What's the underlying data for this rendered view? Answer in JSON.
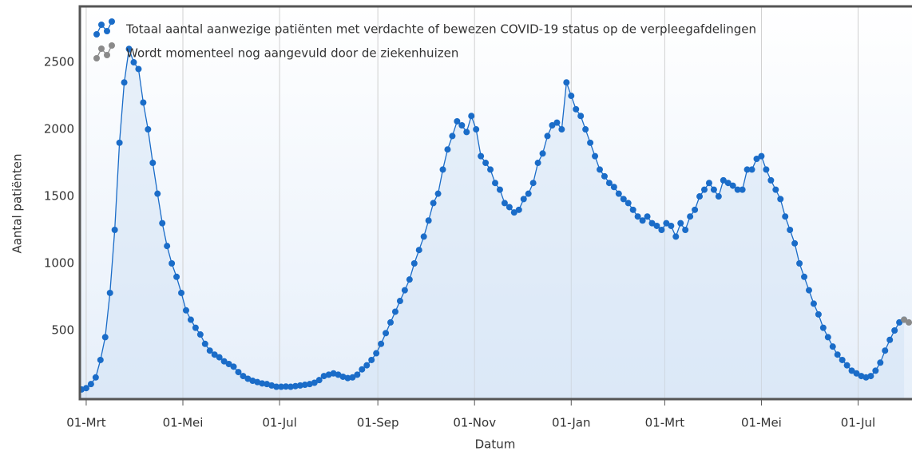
{
  "chart_data": {
    "type": "line",
    "x_label": "Datum",
    "y_label": "Aantal patiënten",
    "xlim": [
      -4,
      521
    ],
    "ylim": [
      -12,
      2917
    ],
    "xticks": [
      {
        "value": 0,
        "label": "01-Mrt"
      },
      {
        "value": 61,
        "label": "01-Mei"
      },
      {
        "value": 122,
        "label": "01-Jul"
      },
      {
        "value": 184,
        "label": "01-Sep"
      },
      {
        "value": 245,
        "label": "01-Nov"
      },
      {
        "value": 306,
        "label": "01-Jan"
      },
      {
        "value": 365,
        "label": "01-Mrt"
      },
      {
        "value": 426,
        "label": "01-Mei"
      },
      {
        "value": 487,
        "label": "01-Jul"
      }
    ],
    "yticks": [
      500,
      1000,
      1500,
      2000,
      2500
    ],
    "grid": true,
    "legend": "top-left",
    "series": [
      {
        "name": "Totaal aantal aanwezige patiënten met verdachte of bewezen COVID-19 status op de verpleegafdelingen",
        "color": "#1a6cc8",
        "x": [
          -3,
          0,
          3,
          6,
          9,
          12,
          15,
          18,
          21,
          24,
          27,
          30,
          33,
          36,
          39,
          42,
          45,
          48,
          51,
          54,
          57,
          60,
          63,
          66,
          69,
          72,
          75,
          78,
          81,
          84,
          87,
          90,
          93,
          96,
          99,
          102,
          105,
          108,
          111,
          114,
          117,
          120,
          123,
          126,
          129,
          132,
          135,
          138,
          141,
          144,
          147,
          150,
          153,
          156,
          159,
          162,
          165,
          168,
          171,
          174,
          177,
          180,
          183,
          186,
          189,
          192,
          195,
          198,
          201,
          204,
          207,
          210,
          213,
          216,
          219,
          222,
          225,
          228,
          231,
          234,
          237,
          240,
          243,
          246,
          249,
          252,
          255,
          258,
          261,
          264,
          267,
          270,
          273,
          276,
          279,
          282,
          285,
          288,
          291,
          294,
          297,
          300,
          303,
          306,
          309,
          312,
          315,
          318,
          321,
          324,
          327,
          330,
          333,
          336,
          339,
          342,
          345,
          348,
          351,
          354,
          357,
          360,
          363,
          366,
          369,
          372,
          375,
          378,
          381,
          384,
          387,
          390,
          393,
          396,
          399,
          402,
          405,
          408,
          411,
          414,
          417,
          420,
          423,
          426,
          429,
          432,
          435,
          438,
          441,
          444,
          447,
          450,
          453,
          456,
          459,
          462,
          465,
          468,
          471,
          474,
          477,
          480,
          483,
          486,
          489,
          492,
          495,
          498,
          501,
          504,
          507,
          510,
          513,
          516
        ],
        "values": [
          60,
          70,
          100,
          150,
          280,
          450,
          780,
          1250,
          1900,
          2350,
          2600,
          2500,
          2450,
          2200,
          2000,
          1750,
          1520,
          1300,
          1130,
          1000,
          900,
          780,
          650,
          580,
          520,
          470,
          400,
          350,
          320,
          300,
          270,
          250,
          230,
          190,
          160,
          140,
          125,
          115,
          105,
          100,
          90,
          80,
          80,
          82,
          80,
          85,
          90,
          95,
          100,
          110,
          130,
          160,
          170,
          180,
          170,
          155,
          145,
          150,
          170,
          210,
          240,
          280,
          330,
          400,
          480,
          560,
          640,
          720,
          800,
          880,
          1000,
          1100,
          1200,
          1320,
          1450,
          1520,
          1700,
          1850,
          1950,
          2060,
          2030,
          1980,
          2100,
          2000,
          1800,
          1750,
          1700,
          1600,
          1550,
          1450,
          1420,
          1380,
          1400,
          1480,
          1520,
          1600,
          1750,
          1820,
          1950,
          2030,
          2050,
          2000,
          2350,
          2250,
          2150,
          2100,
          2000,
          1900,
          1800,
          1700,
          1650,
          1600,
          1570,
          1520,
          1480,
          1450,
          1400,
          1350,
          1320,
          1350,
          1300,
          1280,
          1250,
          1300,
          1280,
          1200,
          1300,
          1250,
          1350,
          1400,
          1500,
          1550,
          1600,
          1550,
          1500,
          1620,
          1600,
          1580,
          1550,
          1550,
          1700,
          1700,
          1780,
          1800,
          1700,
          1620,
          1550,
          1480,
          1350,
          1250,
          1150,
          1000,
          900,
          800,
          700,
          620,
          520,
          450,
          380,
          320,
          280,
          240,
          200,
          180,
          160,
          150,
          160,
          200,
          260,
          350,
          430,
          500,
          560,
          580
        ]
      },
      {
        "name": "Wordt momenteel nog aangevuld door de ziekenhuizen",
        "color": "#8a8a8a",
        "x": [
          516,
          519
        ],
        "values": [
          580,
          560
        ]
      }
    ]
  }
}
